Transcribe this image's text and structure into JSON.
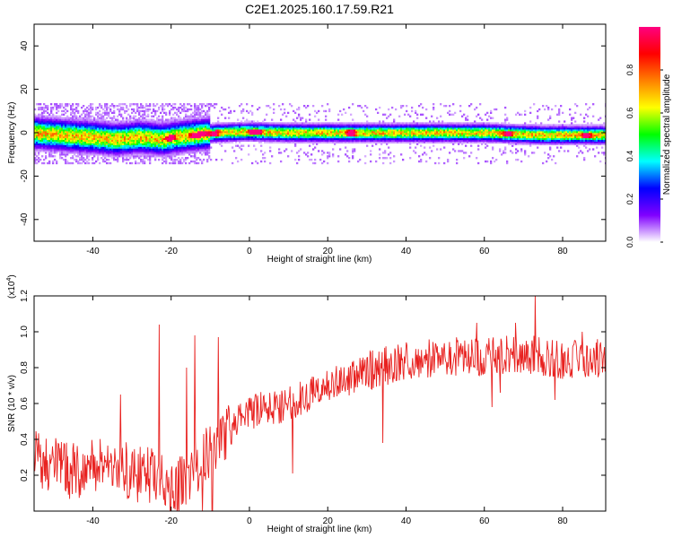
{
  "figure_title": "C2E1.2025.160.17.59.R21",
  "chart_data": [
    {
      "type": "heatmap",
      "title": "",
      "xlabel": "Height of straight line (km)",
      "ylabel": "Frequency (Hz)",
      "xlim": [
        -55,
        91
      ],
      "ylim": [
        -50,
        50
      ],
      "xticks": [
        -40,
        -20,
        0,
        20,
        40,
        60,
        80
      ],
      "yticks": [
        -40,
        -20,
        0,
        20,
        40
      ],
      "grid": false,
      "colorbar": {
        "label": "Normalized spectral amplitude",
        "range": [
          0,
          1
        ],
        "ticks": [
          "0.0",
          "0.2",
          "0.4",
          "0.6",
          "0.8"
        ],
        "colors": [
          "#ffffff",
          "#8000ff",
          "#0000ff",
          "#00ffff",
          "#00ff00",
          "#ffff00",
          "#ff8000",
          "#ff0000",
          "#ff0080"
        ]
      },
      "band": {
        "center_freq_hz": [
          [
            -55,
            0
          ],
          [
            -48,
            -1
          ],
          [
            -40,
            -2
          ],
          [
            -34,
            -3
          ],
          [
            -28,
            -2
          ],
          [
            -22,
            -3
          ],
          [
            -19,
            -2
          ],
          [
            -14,
            -1
          ],
          [
            -8,
            0
          ],
          [
            0,
            0.5
          ],
          [
            10,
            0
          ],
          [
            20,
            0
          ],
          [
            40,
            0
          ],
          [
            60,
            0
          ],
          [
            75,
            -1
          ],
          [
            91,
            -1
          ]
        ],
        "half_width_hz": 3.5,
        "peaks_x_km": [
          -20,
          -14,
          -12,
          -9,
          1,
          2,
          26,
          66,
          86
        ]
      }
    },
    {
      "type": "line",
      "title": "",
      "xlabel": "Height of straight line (km)",
      "ylabel": "SNR (10 * v/v)",
      "scale_label": "(x10",
      "scale_exponent": "4",
      "xlim": [
        -55,
        91
      ],
      "ylim": [
        0,
        1.2
      ],
      "xticks": [
        -40,
        -20,
        0,
        20,
        40,
        60,
        80
      ],
      "yticks": [
        "0.2",
        "0.4",
        "0.6",
        "0.8",
        "1.0",
        "1.2"
      ],
      "grid": false,
      "series": [
        {
          "color": "#e8211f",
          "profile": [
            [
              -55,
              0.3
            ],
            [
              -45,
              0.22
            ],
            [
              -35,
              0.28
            ],
            [
              -30,
              0.2
            ],
            [
              -25,
              0.2
            ],
            [
              -20,
              0.12
            ],
            [
              -15,
              0.2
            ],
            [
              -10,
              0.35
            ],
            [
              -5,
              0.45
            ],
            [
              0,
              0.55
            ],
            [
              10,
              0.6
            ],
            [
              20,
              0.7
            ],
            [
              30,
              0.78
            ],
            [
              40,
              0.84
            ],
            [
              50,
              0.86
            ],
            [
              60,
              0.86
            ],
            [
              70,
              0.88
            ],
            [
              80,
              0.84
            ],
            [
              91,
              0.86
            ]
          ],
          "spikes": [
            [
              -23,
              1.04
            ],
            [
              -14,
              0.98
            ],
            [
              -8,
              0.97
            ],
            [
              -16,
              0.8
            ],
            [
              -33,
              0.65
            ],
            [
              -12,
              0.0
            ],
            [
              -9.5,
              0.0
            ],
            [
              14,
              0.58
            ],
            [
              11,
              0.21
            ],
            [
              34,
              0.38
            ],
            [
              58,
              1.05
            ],
            [
              68,
              1.05
            ],
            [
              73,
              1.2
            ],
            [
              62,
              0.58
            ],
            [
              64,
              0.66
            ],
            [
              78,
              0.62
            ],
            [
              85,
              1.0
            ]
          ]
        }
      ]
    }
  ]
}
